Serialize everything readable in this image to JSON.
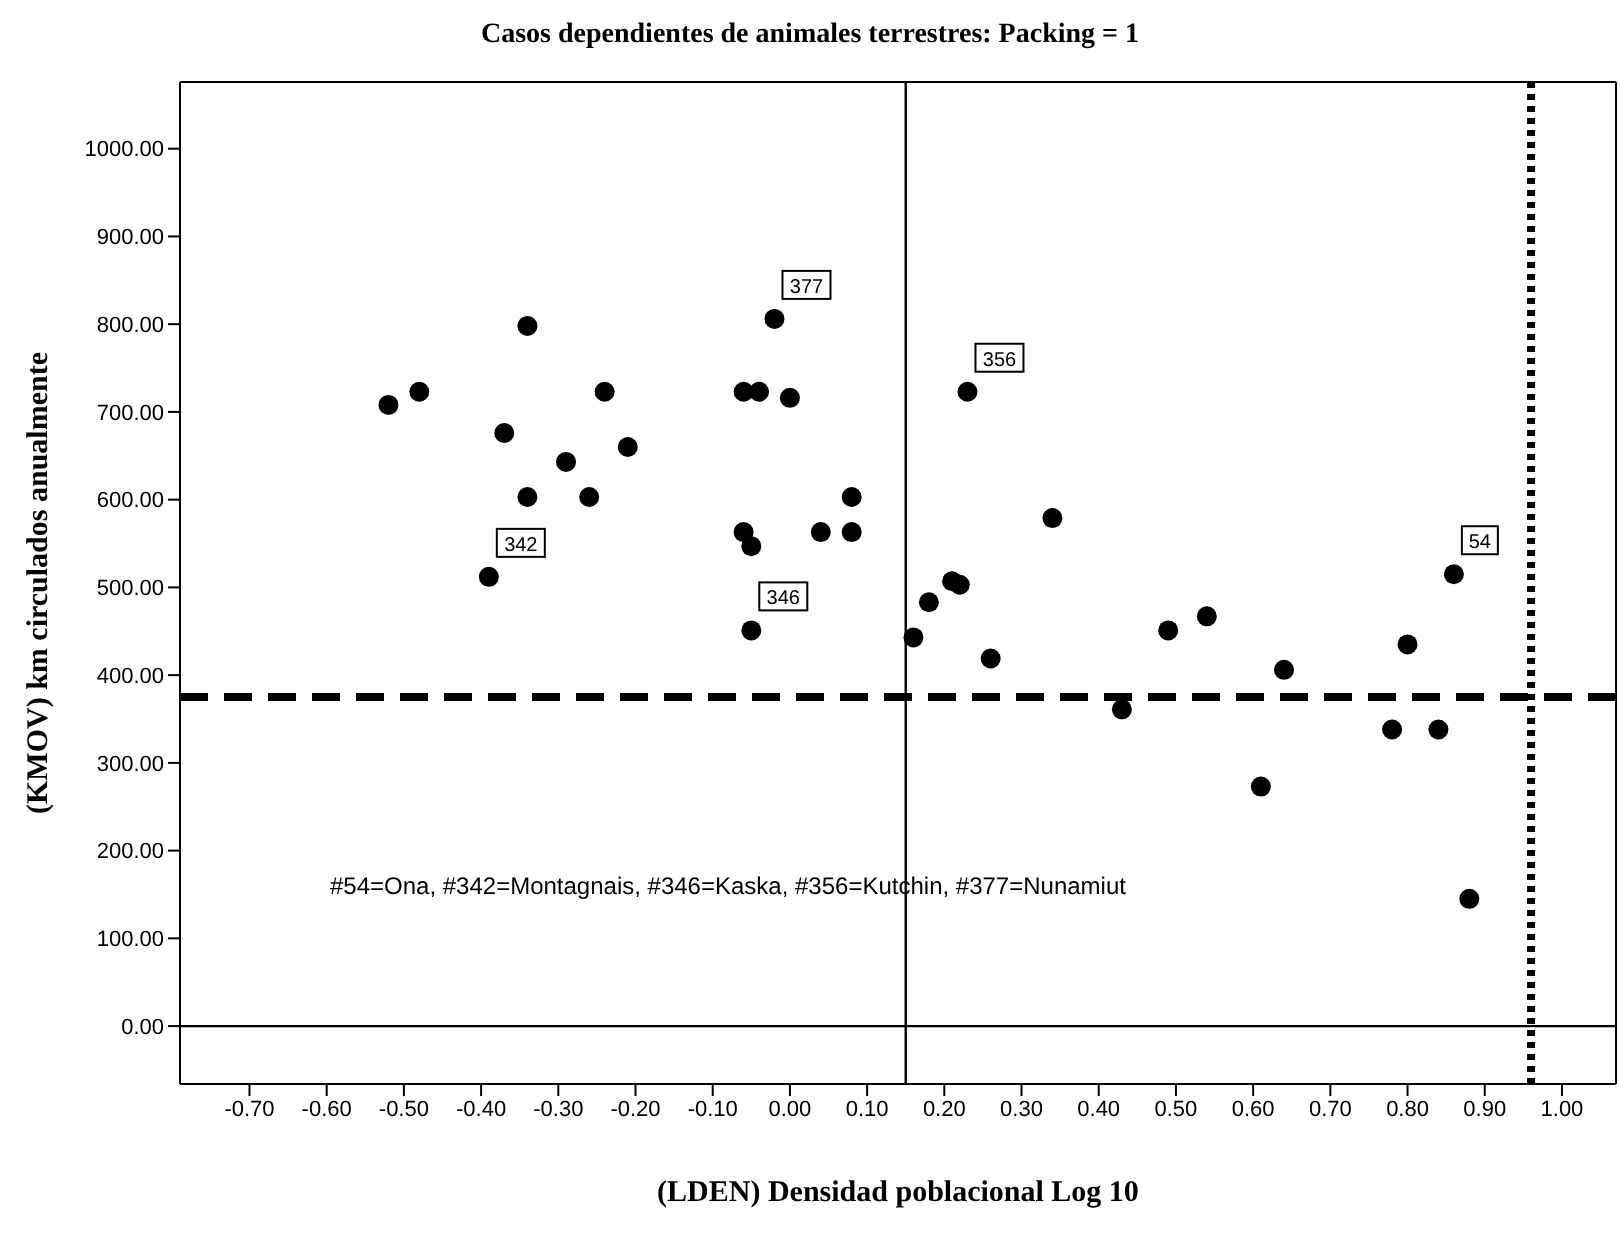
{
  "chart_data": {
    "type": "scatter",
    "title": "Casos dependientes de animales terrestres: Packing = 1",
    "xlabel": "(LDEN) Densidad poblacional Log 10",
    "ylabel": "(KMOV)  km circulados anualmente",
    "x": [
      -0.52,
      -0.48,
      -0.37,
      -0.34,
      -0.34,
      -0.39,
      -0.29,
      -0.26,
      -0.24,
      -0.21,
      -0.06,
      -0.04,
      -0.02,
      0.0,
      -0.06,
      -0.05,
      -0.05,
      0.04,
      0.08,
      0.08,
      0.16,
      0.18,
      0.21,
      0.22,
      0.23,
      0.26,
      0.34,
      0.43,
      0.49,
      0.54,
      0.61,
      0.64,
      0.78,
      0.8,
      0.84,
      0.86,
      0.88
    ],
    "series": [
      {
        "color": "#000000",
        "values": [
          708,
          723,
          676,
          798,
          603,
          512,
          643,
          603,
          723,
          660,
          723,
          723,
          806,
          716,
          563,
          547,
          451,
          563,
          603,
          563,
          443,
          483,
          507,
          503,
          723,
          419,
          579,
          361,
          451,
          467,
          273,
          406,
          338,
          435,
          338,
          515,
          145
        ]
      }
    ],
    "marker": "circle",
    "xlim": [
      -0.79,
      1.07
    ],
    "ylim": [
      -66,
      1076
    ],
    "xticks": [
      {
        "value": -0.7,
        "label": "-0.70"
      },
      {
        "value": -0.6,
        "label": "-0.60"
      },
      {
        "value": -0.5,
        "label": "-0.50"
      },
      {
        "value": -0.4,
        "label": "-0.40"
      },
      {
        "value": -0.3,
        "label": "-0.30"
      },
      {
        "value": -0.2,
        "label": "-0.20"
      },
      {
        "value": -0.1,
        "label": "-0.10"
      },
      {
        "value": 0,
        "label": "0.00"
      },
      {
        "value": 0.1,
        "label": "0.10"
      },
      {
        "value": 0.2,
        "label": "0.20"
      },
      {
        "value": 0.3,
        "label": "0.30"
      },
      {
        "value": 0.4,
        "label": "0.40"
      },
      {
        "value": 0.5,
        "label": "0.50"
      },
      {
        "value": 0.6,
        "label": "0.60"
      },
      {
        "value": 0.7,
        "label": "0.70"
      },
      {
        "value": 0.8,
        "label": "0.80"
      },
      {
        "value": 0.9,
        "label": "0.90"
      },
      {
        "value": 1.0,
        "label": "1.00"
      }
    ],
    "yticks": [
      {
        "value": 0,
        "label": "0.00"
      },
      {
        "value": 100,
        "label": "100.00"
      },
      {
        "value": 200,
        "label": "200.00"
      },
      {
        "value": 300,
        "label": "300.00"
      },
      {
        "value": 400,
        "label": "400.00"
      },
      {
        "value": 500,
        "label": "500.00"
      },
      {
        "value": 600,
        "label": "600.00"
      },
      {
        "value": 700,
        "label": "700.00"
      },
      {
        "value": 800,
        "label": "800.00"
      },
      {
        "value": 900,
        "label": "900.00"
      },
      {
        "value": 1000,
        "label": "1000.00"
      }
    ],
    "ref_lines": [
      {
        "axis": "x",
        "value": 0.15,
        "color": "#000000",
        "line_style": "solid"
      },
      {
        "axis": "x",
        "value": 0.96,
        "color": "#000000",
        "line_style": "dotted"
      },
      {
        "axis": "y",
        "value": 0,
        "color": "#000000",
        "line_style": "solid"
      },
      {
        "axis": "y",
        "value": 375,
        "color": "#000000",
        "line_style": "dashed"
      }
    ],
    "annotations": [
      {
        "text": "377",
        "x": -0.02,
        "y": 806
      },
      {
        "text": "356",
        "x": 0.23,
        "y": 723
      },
      {
        "text": "342",
        "x": -0.39,
        "y": 512
      },
      {
        "text": "346",
        "x": -0.05,
        "y": 451
      },
      {
        "text": "54",
        "x": 0.86,
        "y": 515
      },
      "#54=Ona, #342=Montagnais, #346=Kaska, #356=Kutchin, #377=Nunamiut"
    ]
  }
}
